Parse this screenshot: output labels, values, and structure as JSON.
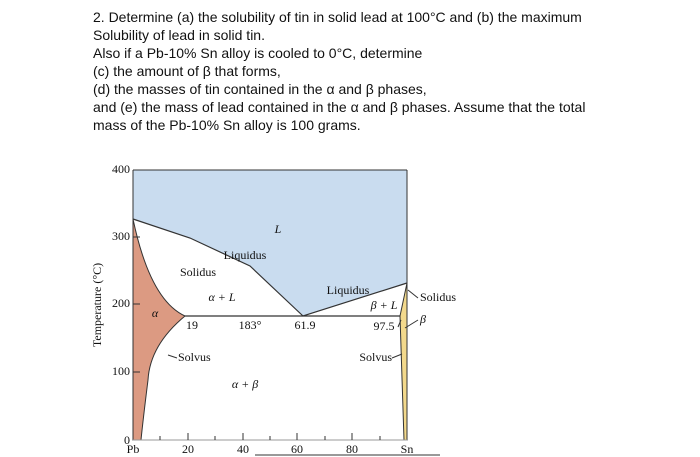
{
  "question": {
    "lines": [
      "2. Determine (a) the solubility of tin in solid lead at 100°C and (b) the maximum",
      "Solubility of lead in solid tin.",
      "Also if a Pb-10% Sn alloy is cooled to 0°C, determine",
      "(c) the amount of β that forms,",
      "(d) the masses of tin contained in the α and β phases,",
      "and (e) the mass of lead contained in the α and β phases. Assume that the total",
      "mass of the Pb-10% Sn alloy is 100 grams."
    ]
  },
  "figure": {
    "y_axis_label": "Temperature (°C)",
    "y_ticks": [
      "400",
      "300",
      "200",
      "100",
      "0"
    ],
    "x_ticks": [
      "Pb",
      "20",
      "40",
      "60",
      "80",
      "Sn"
    ],
    "labels": {
      "liquid": "L",
      "liquidus_left": "Liquidus",
      "solidus_left": "Solidus",
      "alpha_plus_liquid": "α + L",
      "alpha": "α",
      "alpha_limit": "19",
      "eutectic_temp": "183°",
      "eutectic_comp": "61.9",
      "liquidus_right": "Liquidus",
      "beta_plus_liquid": "β + L",
      "beta_limit": "97.5",
      "solidus_right": "Solidus",
      "beta": "β",
      "solvus_left": "Solvus",
      "solvus_right": "Solvus",
      "alpha_plus_beta": "α + β"
    }
  }
}
